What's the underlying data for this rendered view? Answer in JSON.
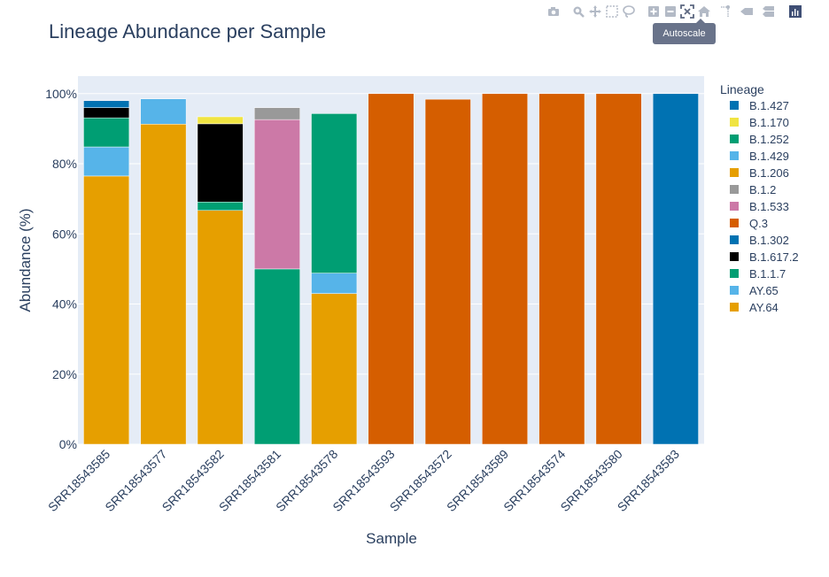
{
  "modebar": {
    "buttons": [
      "camera-icon",
      "zoom-icon",
      "pan-icon",
      "box-select-icon",
      "lasso-select-icon",
      "zoom-in-icon",
      "zoom-out-icon",
      "autoscale-icon",
      "home-icon",
      "spike-lines-icon",
      "hover-closest-icon",
      "hover-compare-icon",
      "plotly-logo-icon"
    ],
    "tooltip": "Autoscale"
  },
  "colors": {
    "plot_bg": "#e5ecf6",
    "grid": "#ffffff",
    "text": "#2a3f5f",
    "modebar_icon": "#b3bac6",
    "modebar_active": "#5c6780"
  },
  "chart_data": {
    "type": "bar",
    "barmode": "stack",
    "title": "Lineage Abundance per Sample",
    "xlabel": "Sample",
    "ylabel": "Abundance (%)",
    "ylim": [
      0,
      105
    ],
    "yticks": [
      "0%",
      "20%",
      "40%",
      "60%",
      "80%",
      "100%"
    ],
    "legend_title": "Lineage",
    "legend_position": "right",
    "categories": [
      "SRR18543585",
      "SRR18543577",
      "SRR18543582",
      "SRR18543581",
      "SRR18543578",
      "SRR18543593",
      "SRR18543572",
      "SRR18543589",
      "SRR18543574",
      "SRR18543580",
      "SRR18543583"
    ],
    "series": [
      {
        "name": "AY.64",
        "color": "#e69f00",
        "values": [
          76.5,
          91.3,
          66.7,
          0,
          43.0,
          0,
          0,
          0,
          0,
          0,
          0
        ]
      },
      {
        "name": "AY.65",
        "color": "#56b4e9",
        "values": [
          8.3,
          7.2,
          0,
          0,
          5.8,
          0,
          0,
          0,
          0,
          0,
          0
        ]
      },
      {
        "name": "B.1.1.7",
        "color": "#009e73",
        "values": [
          8.3,
          0,
          2.4,
          50.0,
          45.5,
          0,
          0,
          0,
          0,
          0,
          0
        ]
      },
      {
        "name": "B.1.617.2",
        "color": "#000000",
        "values": [
          2.9,
          0,
          22.3,
          0,
          0,
          0,
          0,
          0,
          0,
          0,
          0
        ]
      },
      {
        "name": "B.1.302",
        "color": "#0072b2",
        "values": [
          0,
          0,
          0,
          0,
          0,
          0,
          0,
          0,
          0,
          0,
          100.0
        ]
      },
      {
        "name": "Q.3",
        "color": "#d55e00",
        "values": [
          0,
          0,
          0,
          0,
          0,
          100.0,
          98.4,
          100.0,
          100.0,
          100.0,
          0
        ]
      },
      {
        "name": "B.1.533",
        "color": "#cc79a7",
        "values": [
          0,
          0,
          0,
          42.6,
          0,
          0,
          0,
          0,
          0,
          0,
          0
        ]
      },
      {
        "name": "B.1.2",
        "color": "#999999",
        "values": [
          0,
          0,
          0,
          3.4,
          0,
          0,
          0,
          0,
          0,
          0,
          0
        ]
      },
      {
        "name": "B.1.206",
        "color": "#e69f00",
        "values": [
          0,
          0,
          0,
          0,
          0,
          0,
          0,
          0,
          0,
          0,
          0
        ]
      },
      {
        "name": "B.1.429",
        "color": "#56b4e9",
        "values": [
          0,
          0,
          0,
          0,
          0,
          0,
          0,
          0,
          0,
          0,
          0
        ]
      },
      {
        "name": "B.1.252",
        "color": "#009e73",
        "values": [
          0,
          0,
          0,
          0,
          0,
          0,
          0,
          0,
          0,
          0,
          0
        ]
      },
      {
        "name": "B.1.170",
        "color": "#f0e442",
        "values": [
          0,
          0,
          2.0,
          0,
          0,
          0,
          0,
          0,
          0,
          0,
          0
        ]
      },
      {
        "name": "B.1.427",
        "color": "#0072b2",
        "values": [
          2.0,
          0,
          0,
          0,
          0,
          0,
          0,
          0,
          0,
          0,
          0
        ]
      }
    ],
    "legend_order": [
      "B.1.427",
      "B.1.170",
      "B.1.252",
      "B.1.429",
      "B.1.206",
      "B.1.2",
      "B.1.533",
      "Q.3",
      "B.1.302",
      "B.1.617.2",
      "B.1.1.7",
      "AY.65",
      "AY.64"
    ]
  }
}
